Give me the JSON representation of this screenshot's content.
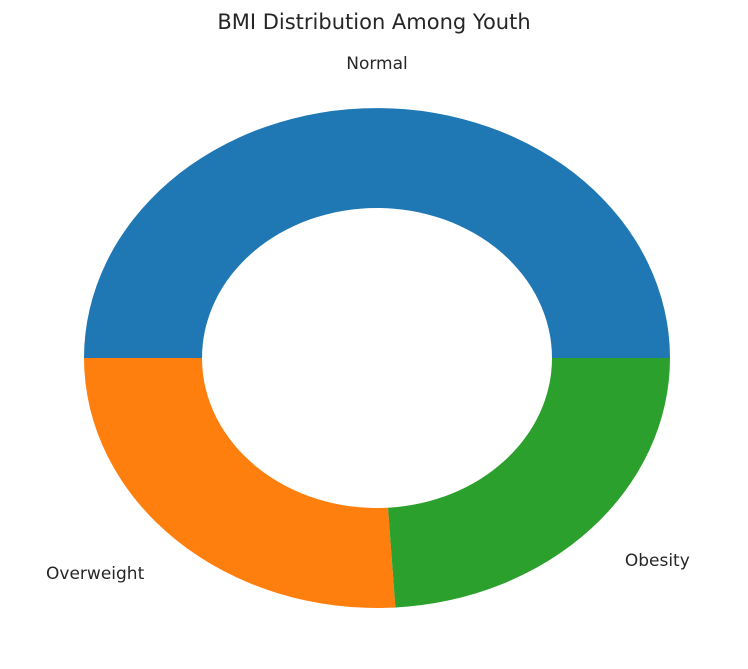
{
  "chart_data": {
    "type": "pie",
    "title": "BMI Distribution Among Youth",
    "donut": true,
    "start_angle_deg": 0,
    "direction": "counterclockwise",
    "slices": [
      {
        "label": "Normal",
        "value": 50,
        "color": "#1f77b4"
      },
      {
        "label": "Overweight",
        "value": 26,
        "color": "#ff7f0e"
      },
      {
        "label": "Obesity",
        "value": 24,
        "color": "#2ca02c"
      }
    ],
    "legend": "none"
  }
}
